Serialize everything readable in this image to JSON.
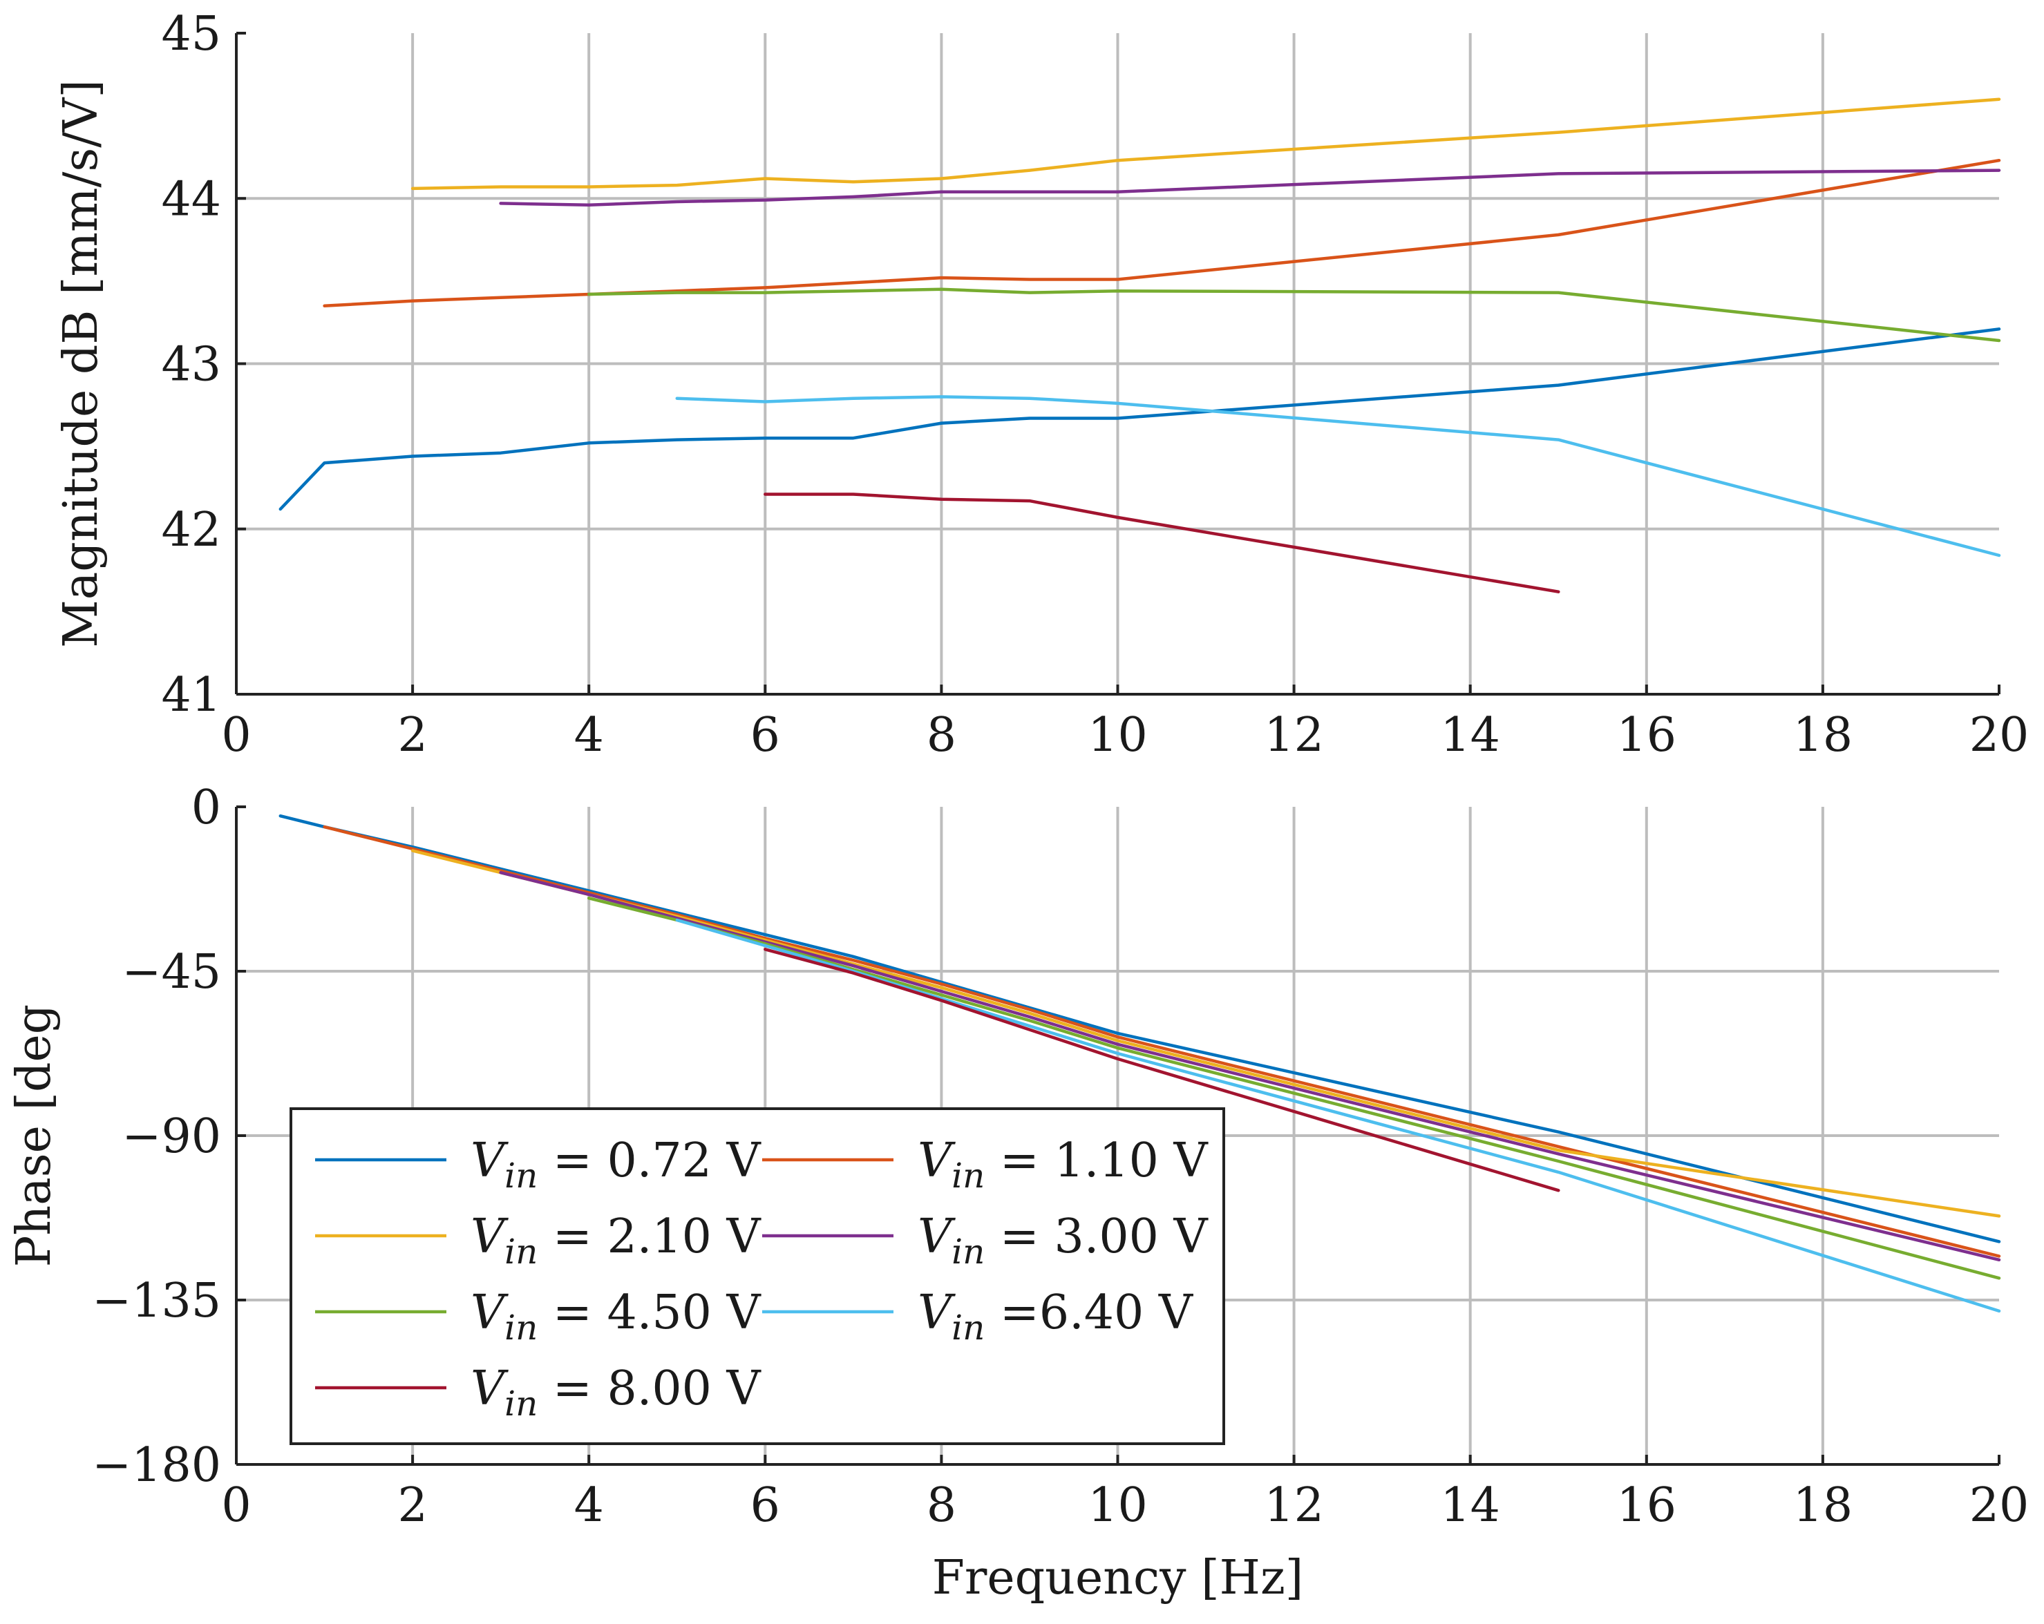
{
  "chart_data": [
    {
      "type": "line",
      "ylabel": "Magnitude dB [mm/s/V]",
      "xlabel": "",
      "xlim": [
        0,
        20
      ],
      "ylim": [
        41,
        45
      ],
      "xticks": [
        0,
        2,
        4,
        6,
        8,
        10,
        12,
        14,
        16,
        18,
        20
      ],
      "xtick_labels": [
        "0",
        "2",
        "4",
        "6",
        "8",
        "10",
        "12",
        "14",
        "16",
        "18",
        "20"
      ],
      "yticks": [
        41,
        42,
        43,
        44,
        45
      ],
      "ytick_labels": [
        "41",
        "42",
        "43",
        "44",
        "45"
      ],
      "grid": true,
      "series": [
        {
          "name": "Vin = 0.72 V",
          "color": "#0072BD",
          "x": [
            0.5,
            1,
            2,
            3,
            4,
            5,
            6,
            7,
            8,
            9,
            10,
            15,
            20
          ],
          "y": [
            42.12,
            42.4,
            42.44,
            42.46,
            42.52,
            42.54,
            42.55,
            42.55,
            42.64,
            42.67,
            42.67,
            42.87,
            43.21
          ]
        },
        {
          "name": "Vin = 1.10 V",
          "color": "#D95319",
          "x": [
            1,
            2,
            3,
            4,
            5,
            6,
            7,
            8,
            9,
            10,
            15,
            20
          ],
          "y": [
            43.35,
            43.38,
            43.4,
            43.42,
            43.44,
            43.46,
            43.49,
            43.52,
            43.51,
            43.51,
            43.78,
            44.23
          ]
        },
        {
          "name": "Vin = 2.10 V",
          "color": "#EDB120",
          "x": [
            2,
            3,
            4,
            5,
            6,
            7,
            8,
            9,
            10,
            15,
            20
          ],
          "y": [
            44.06,
            44.07,
            44.07,
            44.08,
            44.12,
            44.1,
            44.12,
            44.17,
            44.23,
            44.4,
            44.6
          ]
        },
        {
          "name": "Vin = 3.00 V",
          "color": "#7E2F8E",
          "x": [
            3,
            4,
            5,
            6,
            7,
            8,
            9,
            10,
            15,
            20
          ],
          "y": [
            43.97,
            43.96,
            43.98,
            43.99,
            44.01,
            44.04,
            44.04,
            44.04,
            44.15,
            44.17
          ]
        },
        {
          "name": "Vin = 4.50 V",
          "color": "#77AC30",
          "x": [
            4,
            5,
            6,
            7,
            8,
            9,
            10,
            15,
            20
          ],
          "y": [
            43.42,
            43.43,
            43.43,
            43.44,
            43.45,
            43.43,
            43.44,
            43.43,
            43.14
          ]
        },
        {
          "name": "Vin =6.40 V",
          "color": "#4DBEEE",
          "x": [
            5,
            6,
            7,
            8,
            9,
            10,
            15,
            20
          ],
          "y": [
            42.79,
            42.77,
            42.79,
            42.8,
            42.79,
            42.76,
            42.54,
            41.84
          ]
        },
        {
          "name": "Vin = 8.00 V",
          "color": "#A2142F",
          "x": [
            6,
            7,
            8,
            9,
            10,
            15
          ],
          "y": [
            42.21,
            42.21,
            42.18,
            42.17,
            42.07,
            41.62
          ]
        }
      ]
    },
    {
      "type": "line",
      "ylabel": "Phase [deg",
      "xlabel": "Frequency [Hz]",
      "xlim": [
        0,
        20
      ],
      "ylim": [
        -180,
        0
      ],
      "xticks": [
        0,
        2,
        4,
        6,
        8,
        10,
        12,
        14,
        16,
        18,
        20
      ],
      "xtick_labels": [
        "0",
        "2",
        "4",
        "6",
        "8",
        "10",
        "12",
        "14",
        "16",
        "18",
        "20"
      ],
      "yticks": [
        0,
        -45,
        -90,
        -135,
        -180
      ],
      "ytick_labels": [
        "0",
        "−45",
        "−90",
        "−135",
        "−180"
      ],
      "grid": true,
      "legend_position": "bottom-left",
      "series": [
        {
          "name": "Vin = 0.72 V",
          "color": "#0072BD",
          "x": [
            0.5,
            1,
            2,
            3,
            4,
            5,
            6,
            7,
            8,
            9,
            10,
            15,
            20
          ],
          "y": [
            -2.5,
            -5.5,
            -11,
            -17,
            -23,
            -29,
            -35,
            -41,
            -48,
            -55,
            -62,
            -89,
            -119
          ]
        },
        {
          "name": "Vin = 1.10 V",
          "color": "#D95319",
          "x": [
            1,
            2,
            3,
            4,
            5,
            6,
            7,
            8,
            9,
            10,
            15,
            20
          ],
          "y": [
            -5.5,
            -11.5,
            -17.5,
            -23.5,
            -29.5,
            -36,
            -42,
            -48.5,
            -55.5,
            -63,
            -93,
            -123
          ]
        },
        {
          "name": "Vin = 2.10 V",
          "color": "#EDB120",
          "x": [
            2,
            3,
            4,
            5,
            6,
            7,
            8,
            9,
            10,
            15,
            20
          ],
          "y": [
            -12,
            -18,
            -24,
            -30,
            -36.5,
            -43,
            -49.5,
            -56.5,
            -64,
            -94,
            -112
          ]
        },
        {
          "name": "Vin = 3.00 V",
          "color": "#7E2F8E",
          "x": [
            3,
            4,
            5,
            6,
            7,
            8,
            9,
            10,
            15,
            20
          ],
          "y": [
            -18,
            -24,
            -30.5,
            -37,
            -43.5,
            -50.5,
            -57.5,
            -65,
            -95,
            -124
          ]
        },
        {
          "name": "Vin = 4.50 V",
          "color": "#77AC30",
          "x": [
            4,
            5,
            6,
            7,
            8,
            9,
            10,
            15,
            20
          ],
          "y": [
            -25,
            -31,
            -37.5,
            -44.5,
            -51.5,
            -58.5,
            -66,
            -97,
            -129
          ]
        },
        {
          "name": "Vin =6.40 V",
          "color": "#4DBEEE",
          "x": [
            5,
            6,
            7,
            8,
            9,
            10,
            15,
            20
          ],
          "y": [
            -31,
            -38,
            -45,
            -52.5,
            -60,
            -67.5,
            -100,
            -138
          ]
        },
        {
          "name": "Vin = 8.00 V",
          "color": "#A2142F",
          "x": [
            6,
            7,
            8,
            9,
            10,
            15
          ],
          "y": [
            -39,
            -45.5,
            -53,
            -61,
            -69,
            -105
          ]
        }
      ],
      "legend": [
        {
          "prefix": "V",
          "sub": "in",
          "suffix": " = 0.72 V",
          "color": "#0072BD"
        },
        {
          "prefix": "V",
          "sub": "in",
          "suffix": " = 1.10 V",
          "color": "#D95319"
        },
        {
          "prefix": "V",
          "sub": "in",
          "suffix": " = 2.10 V",
          "color": "#EDB120"
        },
        {
          "prefix": "V",
          "sub": "in",
          "suffix": " = 3.00 V",
          "color": "#7E2F8E"
        },
        {
          "prefix": "V",
          "sub": "in",
          "suffix": " = 4.50 V",
          "color": "#77AC30"
        },
        {
          "prefix": "V",
          "sub": "in",
          "suffix": " =6.40 V",
          "color": "#4DBEEE"
        },
        {
          "prefix": "V",
          "sub": "in",
          "suffix": " = 8.00 V",
          "color": "#A2142F"
        }
      ]
    }
  ]
}
